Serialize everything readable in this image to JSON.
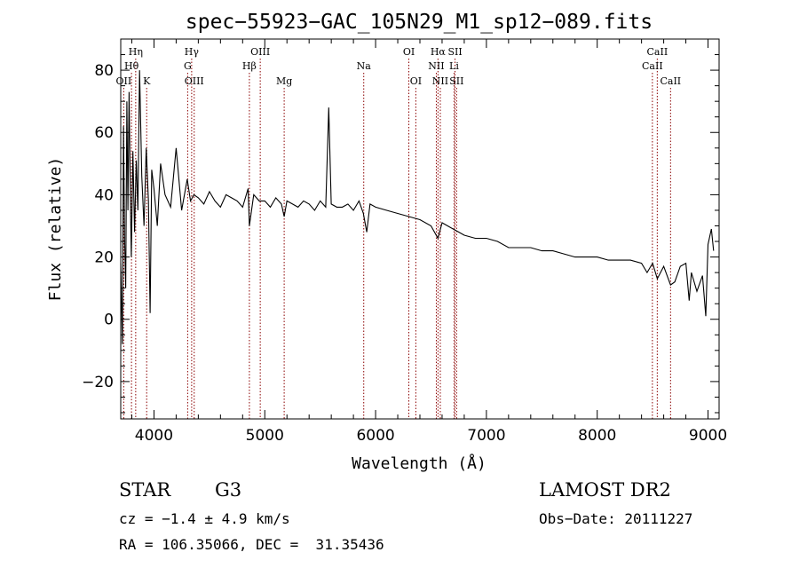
{
  "chart_data": {
    "type": "line",
    "title": "spec−55923−GAC_105N29_M1_sp12−089.fits",
    "xlabel": "Wavelength (Å)",
    "ylabel": "Flux (relative)",
    "xlim": [
      3700,
      9100
    ],
    "ylim": [
      -32,
      90
    ],
    "x_ticks": [
      4000,
      5000,
      6000,
      7000,
      8000,
      9000
    ],
    "y_ticks": [
      -20,
      0,
      20,
      40,
      60,
      80
    ],
    "y_tick_labels": [
      "−20",
      "0",
      "20",
      "40",
      "60",
      "80"
    ],
    "grid": false,
    "series": [
      {
        "x": [
          3700,
          3715,
          3725,
          3735,
          3745,
          3755,
          3765,
          3775,
          3785,
          3795,
          3810,
          3825,
          3840,
          3855,
          3870,
          3890,
          3910,
          3930,
          3950,
          3965,
          3980,
          4000,
          4030,
          4060,
          4100,
          4150,
          4200,
          4250,
          4300,
          4330,
          4360,
          4400,
          4450,
          4500,
          4550,
          4600,
          4650,
          4700,
          4750,
          4800,
          4850,
          4861,
          4900,
          4950,
          5000,
          5050,
          5100,
          5150,
          5175,
          5200,
          5250,
          5300,
          5350,
          5400,
          5450,
          5500,
          5550,
          5577,
          5600,
          5650,
          5700,
          5750,
          5800,
          5850,
          5890,
          5920,
          5950,
          6000,
          6100,
          6200,
          6300,
          6400,
          6500,
          6563,
          6600,
          6650,
          6700,
          6750,
          6800,
          6900,
          7000,
          7100,
          7200,
          7300,
          7400,
          7500,
          7600,
          7700,
          7800,
          7900,
          8000,
          8100,
          8200,
          8300,
          8400,
          8450,
          8500,
          8542,
          8600,
          8662,
          8700,
          8750,
          8800,
          8830,
          8850,
          8900,
          8950,
          8980,
          9000,
          9030,
          9050
        ],
        "y": [
          18,
          -8,
          62,
          25,
          10,
          70,
          35,
          73,
          45,
          20,
          54,
          28,
          51,
          35,
          80,
          46,
          30,
          55,
          38,
          2,
          48,
          42,
          30,
          50,
          40,
          36,
          55,
          35,
          45,
          38,
          40,
          39,
          37,
          41,
          38,
          36,
          40,
          39,
          38,
          36,
          42,
          30,
          40,
          38,
          38,
          36,
          39,
          37,
          33,
          38,
          37,
          36,
          38,
          37,
          35,
          38,
          36,
          68,
          37,
          36,
          36,
          37,
          35,
          38,
          34,
          28,
          37,
          36,
          35,
          34,
          33,
          32,
          30,
          26,
          31,
          30,
          29,
          28,
          27,
          26,
          26,
          25,
          23,
          23,
          23,
          22,
          22,
          21,
          20,
          20,
          20,
          19,
          19,
          19,
          18,
          15,
          18,
          13,
          17,
          11,
          12,
          17,
          18,
          6,
          15,
          9,
          14,
          1,
          24,
          29,
          22
        ],
        "color": "#000000"
      }
    ],
    "line_markers": [
      {
        "label": "Hη",
        "x": 3835,
        "row": 1
      },
      {
        "label": "Hθ",
        "x": 3797,
        "row": 2
      },
      {
        "label": "OII",
        "x": 3727,
        "row": 3
      },
      {
        "label": "K",
        "x": 3934,
        "row": 3
      },
      {
        "label": "Hγ",
        "x": 4340,
        "row": 1
      },
      {
        "label": "G",
        "x": 4304,
        "row": 2
      },
      {
        "label": "OIII",
        "x": 4363,
        "row": 3
      },
      {
        "label": "OIII",
        "x": 4959,
        "row": 1
      },
      {
        "label": "Hβ",
        "x": 4861,
        "row": 2
      },
      {
        "label": "Mg",
        "x": 5175,
        "row": 3
      },
      {
        "label": "Na",
        "x": 5893,
        "row": 2
      },
      {
        "label": "OI",
        "x": 6300,
        "row": 1
      },
      {
        "label": "OI",
        "x": 6363,
        "row": 3
      },
      {
        "label": "Hα",
        "x": 6563,
        "row": 1
      },
      {
        "label": "NII",
        "x": 6548,
        "row": 2
      },
      {
        "label": "NII",
        "x": 6584,
        "row": 3
      },
      {
        "label": "SII",
        "x": 6717,
        "row": 1
      },
      {
        "label": "Li",
        "x": 6708,
        "row": 2
      },
      {
        "label": "SII",
        "x": 6731,
        "row": 3
      },
      {
        "label": "CaII",
        "x": 8542,
        "row": 1
      },
      {
        "label": "CaII",
        "x": 8498,
        "row": 2
      },
      {
        "label": "CaII",
        "x": 8662,
        "row": 3
      }
    ],
    "marker_color": "#8b0000"
  },
  "info": {
    "class": "STAR",
    "subclass": "G3",
    "survey": "LAMOST DR2",
    "cz": "cz = −1.4 ± 4.9 km/s",
    "obs_date": "Obs−Date: 20111227",
    "radec": "RA = 106.35066, DEC =  31.35436"
  }
}
